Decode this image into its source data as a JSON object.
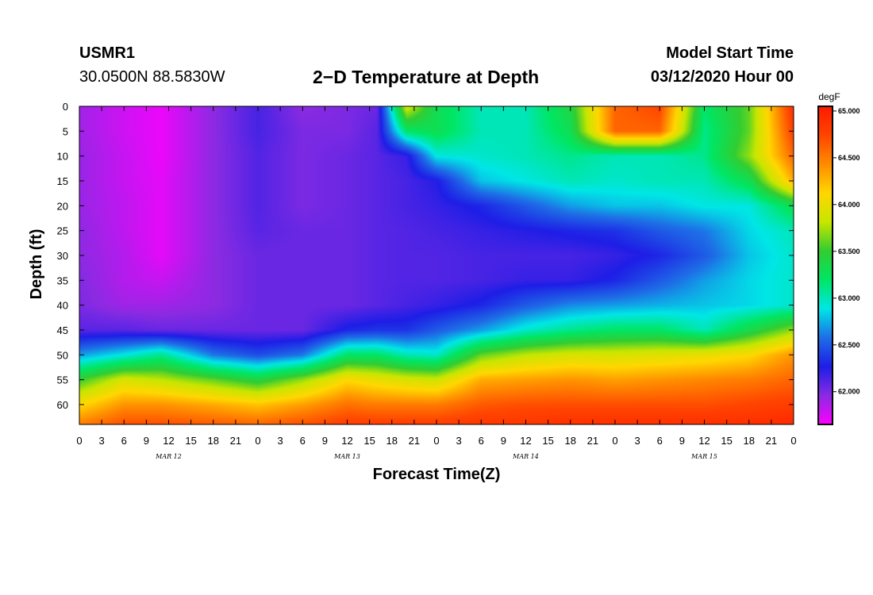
{
  "header": {
    "station_id": "USMR1",
    "coordinates": "30.0500N 88.5830W",
    "title": "2−D Temperature at Depth",
    "start_label": "Model Start Time",
    "start_value": "03/12/2020 Hour 00"
  },
  "chart_data": {
    "type": "heatmap",
    "title": "2−D Temperature at Depth",
    "xlabel": "Forecast Time(Z)",
    "ylabel": "Depth (ft)",
    "x_range_hours": [
      0,
      96
    ],
    "x_tick_step_hours": 3,
    "x_tick_labels": [
      "0",
      "3",
      "6",
      "9",
      "12",
      "15",
      "18",
      "21",
      "0",
      "3",
      "6",
      "9",
      "12",
      "15",
      "18",
      "21",
      "0",
      "3",
      "6",
      "9",
      "12",
      "15",
      "18",
      "21",
      "0",
      "3",
      "6",
      "9",
      "12",
      "15",
      "18",
      "21",
      "0"
    ],
    "day_labels": [
      {
        "text": "MAR 12",
        "hour": 12
      },
      {
        "text": "MAR 13",
        "hour": 36
      },
      {
        "text": "MAR 14",
        "hour": 60
      },
      {
        "text": "MAR 15",
        "hour": 84
      }
    ],
    "y_range_ft": [
      0,
      64
    ],
    "y_ticks": [
      "0",
      "5",
      "10",
      "15",
      "20",
      "25",
      "30",
      "35",
      "40",
      "45",
      "50",
      "55",
      "60"
    ],
    "colorbar": {
      "unit": "degF",
      "min": 61.65,
      "max": 65.05,
      "ticks": [
        "62.000",
        "62.500",
        "63.000",
        "63.500",
        "64.000",
        "64.500",
        "65.000"
      ],
      "palette": [
        "#ff00ff",
        "#8a2be2",
        "#1e1ee6",
        "#1e6ee6",
        "#00e6e6",
        "#00e664",
        "#32cd32",
        "#c8e600",
        "#ffd700",
        "#ff8c00",
        "#ff4500",
        "#ff1a00"
      ]
    },
    "x_hours": [
      0,
      6,
      11,
      18,
      24,
      30,
      36,
      40,
      44,
      48,
      54,
      60,
      66,
      72,
      78,
      84,
      90,
      96
    ],
    "depths_ft": [
      0,
      5,
      10,
      15,
      20,
      25,
      30,
      35,
      40,
      45,
      50,
      55,
      60,
      64
    ],
    "temperature_degF": [
      [
        61.9,
        61.78,
        61.7,
        61.95,
        62.15,
        61.95,
        62.0,
        62.05,
        63.9,
        63.3,
        63.0,
        63.0,
        63.4,
        64.6,
        64.75,
        63.2,
        63.6,
        64.9
      ],
      [
        61.9,
        61.78,
        61.7,
        61.95,
        62.15,
        62.0,
        62.0,
        62.1,
        63.2,
        63.3,
        63.0,
        63.0,
        63.3,
        64.6,
        64.6,
        63.1,
        63.6,
        64.8
      ],
      [
        61.92,
        61.8,
        61.7,
        61.95,
        62.12,
        62.0,
        62.05,
        62.1,
        62.2,
        62.9,
        62.95,
        63.0,
        63.1,
        63.0,
        63.0,
        63.1,
        63.7,
        64.6
      ],
      [
        61.92,
        61.8,
        61.72,
        61.95,
        62.12,
        62.0,
        62.05,
        62.1,
        62.15,
        62.25,
        62.8,
        62.9,
        63.0,
        62.95,
        63.0,
        63.0,
        63.3,
        64.3
      ],
      [
        61.92,
        61.82,
        61.72,
        61.95,
        62.12,
        62.0,
        62.05,
        62.1,
        62.15,
        62.2,
        62.3,
        62.5,
        62.7,
        62.8,
        62.8,
        62.9,
        62.9,
        63.3
      ],
      [
        61.95,
        61.82,
        61.72,
        61.95,
        62.1,
        62.05,
        62.05,
        62.1,
        62.12,
        62.15,
        62.2,
        62.25,
        62.3,
        62.35,
        62.5,
        62.6,
        62.85,
        63.0
      ],
      [
        61.95,
        61.85,
        61.72,
        61.95,
        62.05,
        62.05,
        62.05,
        62.1,
        62.12,
        62.12,
        62.15,
        62.15,
        62.15,
        62.2,
        62.3,
        62.5,
        62.8,
        62.95
      ],
      [
        61.98,
        61.85,
        61.8,
        61.95,
        62.05,
        62.05,
        62.05,
        62.1,
        62.12,
        62.12,
        62.15,
        62.2,
        62.2,
        62.3,
        62.5,
        62.7,
        62.85,
        62.95
      ],
      [
        62.0,
        61.9,
        61.9,
        61.95,
        62.05,
        62.05,
        62.05,
        62.1,
        62.15,
        62.2,
        62.3,
        62.5,
        62.65,
        62.7,
        62.75,
        62.8,
        62.85,
        62.95
      ],
      [
        62.1,
        62.1,
        62.05,
        62.05,
        62.05,
        62.05,
        62.3,
        62.35,
        62.35,
        62.5,
        62.7,
        62.95,
        63.1,
        63.2,
        63.2,
        63.0,
        63.35,
        63.7
      ],
      [
        62.7,
        62.9,
        63.1,
        62.6,
        62.45,
        62.6,
        63.2,
        63.2,
        63.0,
        62.95,
        63.6,
        63.8,
        63.9,
        63.9,
        63.95,
        64.0,
        64.1,
        64.4
      ],
      [
        63.5,
        63.9,
        63.8,
        63.6,
        63.4,
        63.7,
        64.1,
        64.0,
        63.9,
        63.85,
        64.3,
        64.35,
        64.4,
        64.35,
        64.4,
        64.45,
        64.5,
        64.6
      ],
      [
        64.1,
        64.4,
        64.4,
        64.3,
        64.2,
        64.35,
        64.55,
        64.5,
        64.5,
        64.5,
        64.65,
        64.7,
        64.7,
        64.7,
        64.7,
        64.7,
        64.75,
        64.8
      ],
      [
        64.5,
        64.7,
        64.7,
        64.65,
        64.6,
        64.7,
        64.8,
        64.8,
        64.8,
        64.8,
        64.85,
        64.85,
        64.9,
        64.9,
        64.9,
        64.9,
        64.9,
        64.95
      ]
    ]
  }
}
